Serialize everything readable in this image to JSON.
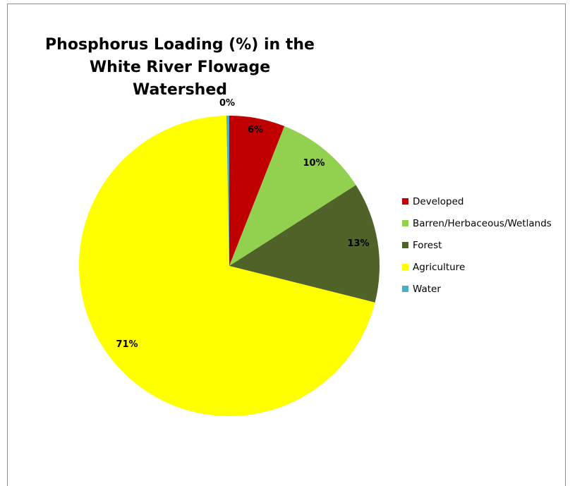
{
  "chart_data": {
    "type": "pie",
    "title": "Phosphorus Loading (%) in the White River Flowage Watershed",
    "title_lines": [
      "Phosphorus Loading (%) in the",
      "White River Flowage Watershed"
    ],
    "slices": [
      {
        "label": "Developed",
        "value": 6,
        "display": "6%",
        "color": "#c00000"
      },
      {
        "label": "Barren/Herbaceous/Wetlands",
        "value": 10,
        "display": "10%",
        "color": "#92d050"
      },
      {
        "label": "Forest",
        "value": 13,
        "display": "13%",
        "color": "#4f6228"
      },
      {
        "label": "Agriculture",
        "value": 71,
        "display": "71%",
        "color": "#ffff00"
      },
      {
        "label": "Water",
        "value": 0.3,
        "display": "0%",
        "color": "#4bacc6"
      }
    ],
    "legend_position": "right"
  }
}
